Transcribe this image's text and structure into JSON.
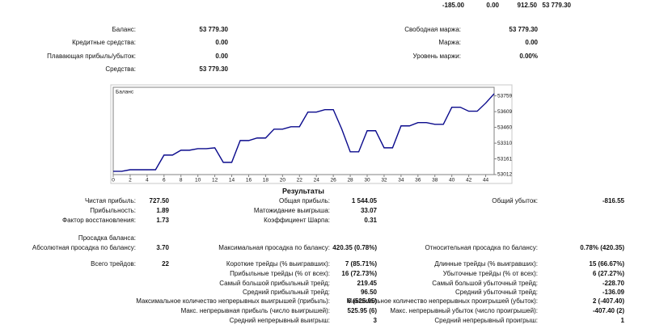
{
  "top_row": [
    "-185.00",
    "0.00",
    "912.50",
    "53 779.30"
  ],
  "account": {
    "left": [
      [
        "Баланс:",
        "53 779.30"
      ],
      [
        "Кредитные средства:",
        "0.00"
      ],
      [
        "Плавающая прибыль/убыток:",
        "0.00"
      ],
      [
        "Средства:",
        "53 779.30"
      ]
    ],
    "right": [
      [
        "Свободная маржа:",
        "53 779.30"
      ],
      [
        "Маржа:",
        "0.00"
      ],
      [
        "Уровень маржи:",
        "0.00%"
      ]
    ]
  },
  "chart_data": {
    "type": "line",
    "title": "Баланс",
    "color": "#0a0a8c",
    "x": [
      0,
      1,
      2,
      3,
      4,
      5,
      6,
      7,
      8,
      9,
      10,
      11,
      12,
      13,
      14,
      15,
      16,
      17,
      18,
      19,
      20,
      21,
      22,
      23,
      24,
      25,
      26,
      27,
      28,
      29,
      30,
      31,
      32,
      33,
      34,
      35,
      36,
      37,
      38,
      39,
      40,
      41,
      42,
      43,
      44,
      45
    ],
    "values": [
      53043,
      53043,
      53058,
      53058,
      53058,
      53058,
      53197,
      53197,
      53243,
      53243,
      53258,
      53258,
      53266,
      53128,
      53128,
      53335,
      53335,
      53359,
      53359,
      53443,
      53443,
      53466,
      53466,
      53605,
      53605,
      53628,
      53628,
      53443,
      53228,
      53228,
      53428,
      53428,
      53266,
      53266,
      53474,
      53474,
      53505,
      53505,
      53489,
      53489,
      53651,
      53651,
      53613,
      53613,
      53690,
      53779
    ],
    "xlim": [
      0,
      45
    ],
    "ylim": [
      53012,
      53840
    ],
    "xticks": [
      0,
      2,
      4,
      6,
      8,
      10,
      12,
      14,
      16,
      18,
      20,
      22,
      24,
      26,
      28,
      30,
      32,
      34,
      36,
      38,
      40,
      42,
      44
    ],
    "yticks": [
      53012,
      53161,
      53310,
      53460,
      53609,
      53759
    ]
  },
  "results": {
    "title": "Результаты",
    "rows": [
      [
        [
          "Чистая прибыль:",
          "727.50"
        ],
        [
          "Общая прибыль:",
          "1 544.05"
        ],
        [
          "Общий убыток:",
          "-816.55"
        ]
      ],
      [
        [
          "Прибыльность:",
          "1.89"
        ],
        [
          "Матожидание выигрыша:",
          "33.07"
        ],
        null
      ],
      [
        [
          "Фактор восстановления:",
          "1.73"
        ],
        [
          "Коэффициент Шарпа:",
          "0.31"
        ],
        null
      ],
      [
        [
          "Просадка баланса:"
        ],
        null,
        null
      ],
      [
        [
          "Абсолютная просадка по балансу:",
          "3.70"
        ],
        [
          "Максимальная просадка по балансу:",
          "420.35 (0.78%)"
        ],
        [
          "Относительная просадка по балансу:",
          "0.78% (420.35)"
        ]
      ],
      [
        [
          "Всего трейдов:",
          "22"
        ],
        [
          "Короткие трейды (% выигравших):",
          "7 (85.71%)"
        ],
        [
          "Длинные трейды (% выигравших):",
          "15 (66.67%)"
        ]
      ],
      [
        null,
        [
          "Прибыльные трейды (% от всех):",
          "16 (72.73%)"
        ],
        [
          "Убыточные трейды (% от всех):",
          "6 (27.27%)"
        ]
      ],
      [
        null,
        [
          "Самый большой прибыльный трейд:",
          "219.45"
        ],
        [
          "Самый большой убыточный трейд:",
          "-228.70"
        ]
      ],
      [
        null,
        [
          "Средний прибыльный трейд:",
          "96.50"
        ],
        [
          "Средний убыточный трейд:",
          "-136.09"
        ]
      ],
      [
        null,
        [
          "Максимальное количество непрерывных выигрышей (прибыль):",
          "6 (525.95)"
        ],
        [
          "Максимальное количество непрерывных проигрышей (убыток):",
          "2 (-407.40)"
        ]
      ],
      [
        null,
        [
          "Макс. непрерывная прибыль (число выигрышей):",
          "525.95 (6)"
        ],
        [
          "Макс. непрерывный убыток (число проигрышей):",
          "-407.40 (2)"
        ]
      ],
      [
        null,
        [
          "Средний непрерывный выигрыш:",
          "3"
        ],
        [
          "Средний непрерывный проигрыш:",
          "1"
        ]
      ]
    ]
  }
}
